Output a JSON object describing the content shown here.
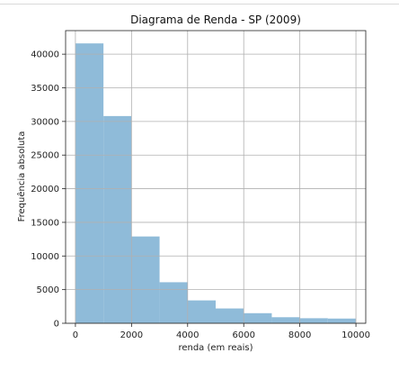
{
  "chart_data": {
    "type": "bar",
    "title": "Diagrama de Renda - SP (2009)",
    "xlabel": "renda (em reais)",
    "ylabel": "Frequência absoluta",
    "xlim": [
      -350,
      10350
    ],
    "ylim": [
      0,
      43500
    ],
    "xticks": [
      0,
      2000,
      4000,
      6000,
      8000,
      10000
    ],
    "yticks": [
      0,
      5000,
      10000,
      15000,
      20000,
      25000,
      30000,
      35000,
      40000
    ],
    "grid": true,
    "bar_color": "#8fbbd9",
    "bins": [
      {
        "start": 0,
        "end": 1000,
        "value": 41600
      },
      {
        "start": 1000,
        "end": 2000,
        "value": 30800
      },
      {
        "start": 2000,
        "end": 3000,
        "value": 12900
      },
      {
        "start": 3000,
        "end": 4000,
        "value": 6100
      },
      {
        "start": 4000,
        "end": 5000,
        "value": 3400
      },
      {
        "start": 5000,
        "end": 6000,
        "value": 2200
      },
      {
        "start": 6000,
        "end": 7000,
        "value": 1500
      },
      {
        "start": 7000,
        "end": 8000,
        "value": 900
      },
      {
        "start": 8000,
        "end": 9000,
        "value": 750
      },
      {
        "start": 9000,
        "end": 10000,
        "value": 700
      }
    ]
  }
}
